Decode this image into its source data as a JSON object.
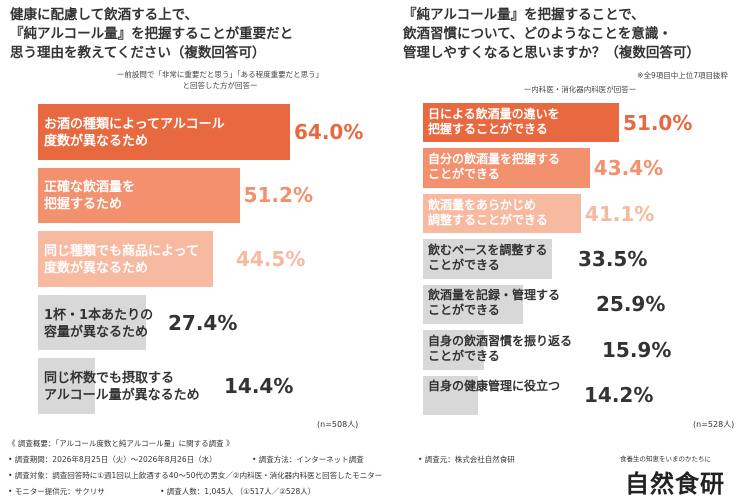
{
  "chart_data": [
    {
      "type": "bar",
      "orientation": "horizontal",
      "title": "健康に配慮して飲酒する上で、\n『純アルコール量』を把握することが重要だと\n思う理由を教えてください（複数回答可）",
      "subtitle": "ー前設問で「非常に重要だと思う」「ある程度重要だと思う」\nと回答した方が回答ー",
      "categories": [
        "お酒の種類によってアルコール\n度数が異なるため",
        "正確な飲酒量を\n把握するため",
        "同じ種類でも商品によって\n度数が異なるため",
        "1杯・1本あたりの\n容量が異なるため",
        "同じ杯数でも摂取する\nアルコール量が異なるため"
      ],
      "values": [
        64.0,
        51.2,
        44.5,
        27.4,
        14.4
      ],
      "value_labels": [
        "64.0%",
        "51.2%",
        "44.5%",
        "27.4%",
        "14.4%"
      ],
      "bar_colors": [
        "#e8693f",
        "#f3906d",
        "#f8b9a1",
        "#d8d8d8",
        "#d8d8d8"
      ],
      "value_colors": [
        "#e8693f",
        "#f3906d",
        "#f8b9a1",
        "#333333",
        "#333333"
      ],
      "label_dark": [
        false,
        false,
        false,
        true,
        true
      ],
      "n": "(n=508人)"
    },
    {
      "type": "bar",
      "orientation": "horizontal",
      "title": "『純アルコール量』を把握することで、\n飲酒習慣について、どのようなことを意識・\n管理しやすくなると思いますか？（複数回答可）",
      "subtitle": "※全9項目中上位7項目抜粋",
      "subtitle2": "ー内科医・消化器内科医が回答ー",
      "categories": [
        "日による飲酒量の違いを\n把握することができる",
        "自分の飲酒量を把握する\nことができる",
        "飲酒量をあらかじめ\n調整することができる",
        "飲むペースを調整する\nことができる",
        "飲酒量を記録・管理する\nことができる",
        "自身の飲酒習慣を振り返る\nことができる",
        "自身の健康管理に役立つ"
      ],
      "values": [
        51.0,
        43.4,
        41.1,
        33.5,
        25.9,
        15.9,
        14.2
      ],
      "value_labels": [
        "51.0%",
        "43.4%",
        "41.1%",
        "33.5%",
        "25.9%",
        "15.9%",
        "14.2%"
      ],
      "bar_colors": [
        "#e8693f",
        "#f3906d",
        "#f8b9a1",
        "#d8d8d8",
        "#d8d8d8",
        "#d8d8d8",
        "#d8d8d8"
      ],
      "value_colors": [
        "#e8693f",
        "#f3906d",
        "#f8b9a1",
        "#333333",
        "#333333",
        "#333333",
        "#333333"
      ],
      "label_dark": [
        false,
        false,
        false,
        true,
        true,
        true,
        true
      ],
      "n": "(n=528人)"
    }
  ],
  "footer": {
    "overview": "《 調査概要：「アルコール度数と純アルコール量」に関する調査 》",
    "period": "• 調査期間：2026年8月25日（火）〜2026年8月26日（水）",
    "method": "• 調査方法：インターネット調査",
    "source": "• 調査元：株式会社自然食研",
    "target": "• 調査対象：調査回答時に①週1回以上飲酒する40〜50代の男女／②内科医・消化器内科医と回答したモニター",
    "provider": "• モニター提供元：サクリサ",
    "count": "• 調査人数：1,045人 （①517人／②528人）"
  },
  "brand": {
    "tagline": "食養生の知恵をいまのかたちに",
    "name": "自然食研"
  }
}
